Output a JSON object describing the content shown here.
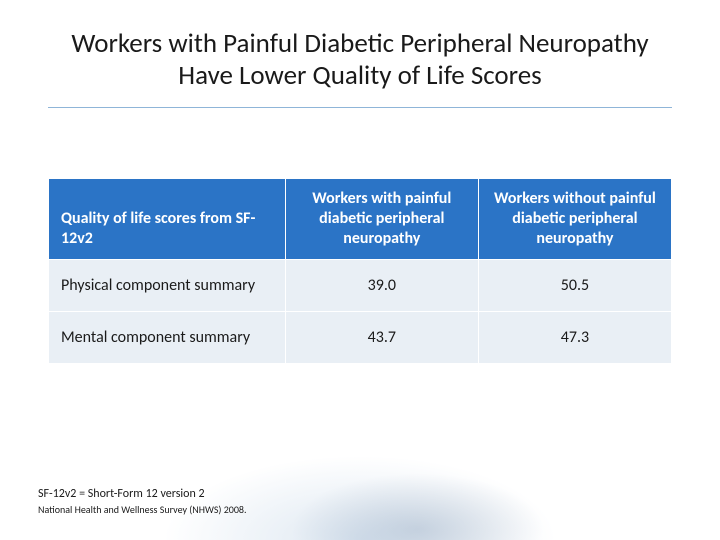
{
  "title": "Workers with Painful Diabetic Peripheral Neuropathy Have Lower Quality of Life Scores",
  "table": {
    "header_bg": "#2b74c6",
    "header_color": "#ffffff",
    "cell_bg": "#e9eff5",
    "cell_color": "#1a1a1a",
    "border_color": "#ffffff",
    "col_widths_pct": [
      38,
      31,
      31
    ],
    "columns": [
      "Quality of life scores from SF-12v2",
      "Workers with painful diabetic peripheral neuropathy",
      "Workers without painful diabetic peripheral neuropathy"
    ],
    "rows": [
      {
        "label": "Physical component summary",
        "with": "39.0",
        "without": "50.5"
      },
      {
        "label": "Mental component summary",
        "with": "43.7",
        "without": "47.3"
      }
    ]
  },
  "footnotes": {
    "line1": "SF-12v2 = Short-Form 12 version 2",
    "line2": "National Health and Wellness Survey (NHWS) 2008."
  },
  "style": {
    "title_fontsize": 27,
    "title_underline_color": "#8fb5d8",
    "header_fontsize": 16,
    "cell_fontsize": 16,
    "fn1_fontsize": 12,
    "fn2_fontsize": 10,
    "background_color": "#ffffff"
  }
}
